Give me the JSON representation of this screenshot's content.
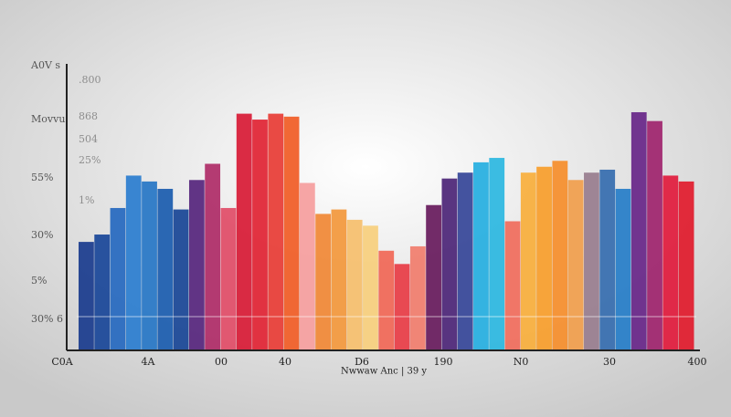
{
  "chart_data": {
    "type": "bar",
    "y_labels": [
      "A0V s",
      "Movvu",
      "55%",
      "30%",
      "5%",
      "30% 6"
    ],
    "y_labels_inner": [
      ".800",
      "868",
      "504",
      "25%",
      "1%"
    ],
    "x_labels": [
      "C0A",
      "4A",
      "00",
      "40",
      "D6",
      "190",
      "N0",
      "30",
      "400"
    ],
    "x_axis_label": "Nwwaw Anc | 39 y",
    "ylim": [
      0,
      100
    ],
    "values": [
      36.5,
      39,
      48,
      59,
      57,
      54.5,
      47.5,
      57.5,
      63,
      48,
      80,
      78,
      80,
      79,
      56.5,
      46,
      47.5,
      44,
      42,
      33.5,
      29,
      35,
      49,
      58,
      60,
      63.5,
      65,
      43.5,
      60,
      62,
      64,
      57.5,
      60,
      61,
      54.5,
      80.5,
      77.5,
      59,
      57
    ],
    "colors": [
      "#1f3f8f",
      "#1e4a9a",
      "#2a6cc0",
      "#2f7fd0",
      "#2b79c6",
      "#2060b0",
      "#1d4a98",
      "#5a2a80",
      "#b0306a",
      "#e0506a",
      "#d8203a",
      "#e02838",
      "#e8403a",
      "#f0602a",
      "#f5a0a0",
      "#f08a3a",
      "#f29a40",
      "#f5c070",
      "#f7d080",
      "#f06a5a",
      "#e8404a",
      "#f08070",
      "#6a2060",
      "#502a7a",
      "#3a4a9a",
      "#2ab0e0",
      "#30b8e0",
      "#f07060",
      "#f8b040",
      "#f8a030",
      "#f59030",
      "#f0a050",
      "#9a8090",
      "#3a70b0",
      "#2a80c8",
      "#6a2a8a",
      "#a02870",
      "#e02040",
      "#e02030"
    ]
  }
}
